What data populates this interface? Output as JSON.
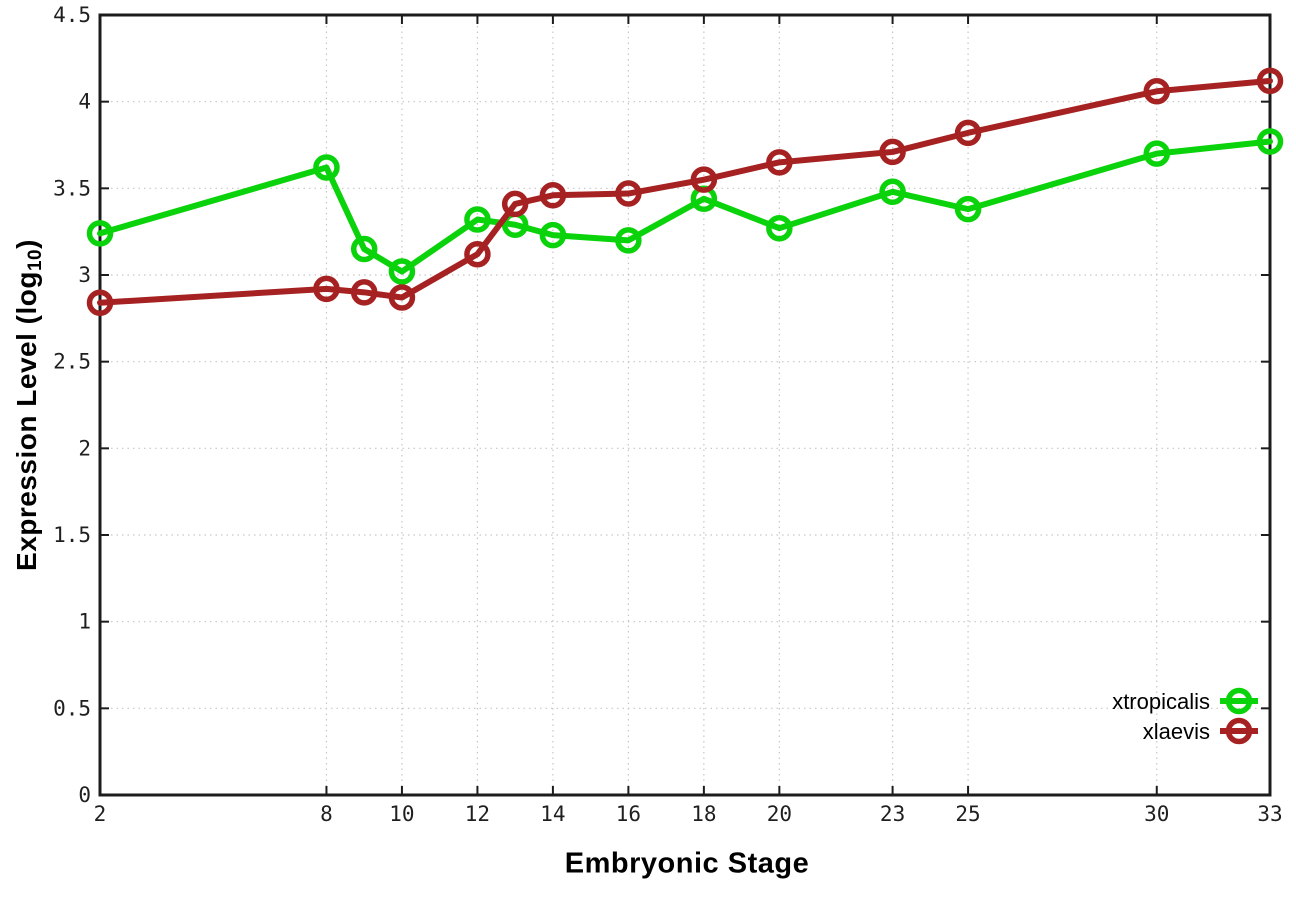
{
  "chart_data": {
    "type": "line",
    "title": "",
    "xlabel": "Embryonic Stage",
    "ylabel": "Expression Level (log10)",
    "ylabel_parts": {
      "pre": "Expression Level (log",
      "sub": "10",
      "post": ")"
    },
    "xlim": [
      2,
      33
    ],
    "ylim": [
      0,
      4.5
    ],
    "xticks": [
      2,
      8,
      10,
      12,
      14,
      16,
      18,
      20,
      23,
      25,
      30,
      33
    ],
    "xtick_labels": [
      "2",
      "8",
      "10",
      "12",
      "14",
      "16",
      "18",
      "20",
      "23",
      "25",
      "30",
      "33"
    ],
    "yticks": [
      0,
      0.5,
      1,
      1.5,
      2,
      2.5,
      3,
      3.5,
      4,
      4.5
    ],
    "ytick_labels": [
      "0",
      "0.5",
      "1",
      "1.5",
      "2",
      "2.5",
      "3",
      "3.5",
      "4",
      "4.5"
    ],
    "grid": true,
    "legend_position": "bottom-right",
    "x": [
      2,
      8,
      9,
      10,
      12,
      13,
      14,
      16,
      18,
      20,
      23,
      25,
      30,
      33
    ],
    "series": [
      {
        "name": "xtropicalis",
        "color": "#0bd30b",
        "values": [
          3.24,
          3.62,
          3.15,
          3.02,
          3.32,
          3.29,
          3.23,
          3.2,
          3.44,
          3.27,
          3.48,
          3.38,
          3.7,
          3.77
        ]
      },
      {
        "name": "xlaevis",
        "color": "#a62222",
        "values": [
          2.84,
          2.92,
          2.9,
          2.87,
          3.12,
          3.41,
          3.46,
          3.47,
          3.55,
          3.65,
          3.71,
          3.82,
          4.06,
          4.12
        ]
      }
    ]
  }
}
